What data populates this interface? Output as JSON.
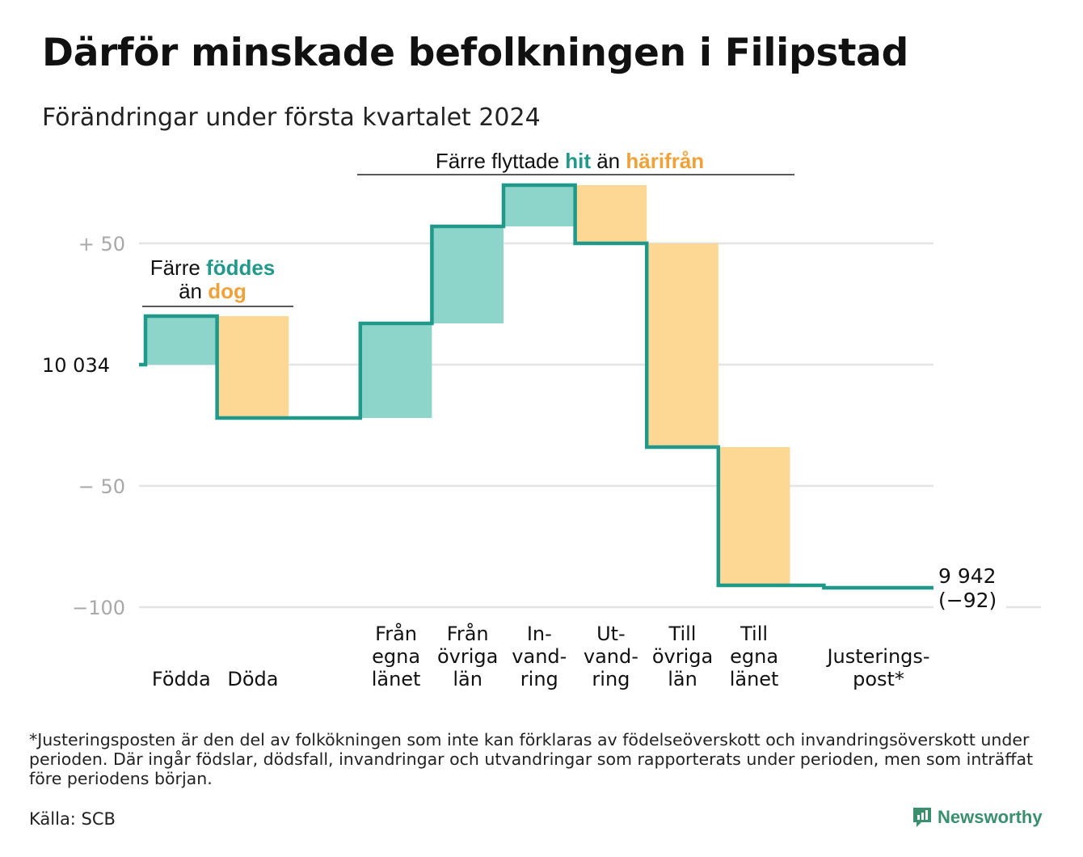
{
  "title": "Därför minskade befolkningen i Filipstad",
  "subtitle": "Förändringar under första kvartalet 2024",
  "footnote": "*Justeringsposten är den del av folkökningen som inte kan förklaras av födelseöverskott och invandringsöverskott under perioden. Där ingår födslar, dödsfall, invandringar och utvandringar som rapporterats under perioden, men som inträffat före periodens början.",
  "source": "Källa: SCB",
  "brand": "Newsworthy",
  "colors": {
    "increase": "#8dd5cb",
    "decrease": "#fcd894",
    "line": "#20998a",
    "teal_text": "#20998a",
    "orange_text": "#f0a23a",
    "grid": "#e4e4e4",
    "tick": "#a8a8a8"
  },
  "chart_data": {
    "type": "waterfall",
    "y_ticks": [
      {
        "value": 50,
        "label": "+  50",
        "gridline": true
      },
      {
        "value": 0,
        "label": "10  034",
        "gridline": true
      },
      {
        "value": -50,
        "label": "−  50",
        "gridline": true
      },
      {
        "value": -100,
        "label": "−100",
        "gridline": true
      }
    ],
    "ylim": [
      -100,
      80
    ],
    "start": {
      "label": "10  034",
      "value": 10034
    },
    "end": {
      "value_label": "9 942",
      "change_label": "(−92)",
      "value": 9942,
      "change": -92
    },
    "steps": [
      {
        "label": "Födda",
        "label_lines": [
          "Födda"
        ],
        "change": 20,
        "from": 0,
        "to": 20,
        "kind": "increase"
      },
      {
        "label": "Döda",
        "label_lines": [
          "Döda"
        ],
        "change": -42,
        "from": 20,
        "to": -22,
        "kind": "decrease"
      },
      {
        "label": "",
        "label_lines": [],
        "change": 0,
        "from": -22,
        "to": -22,
        "kind": "gap"
      },
      {
        "label": "Från egna länet",
        "label_lines": [
          "Från",
          "egna",
          "länet"
        ],
        "change": 39,
        "from": -22,
        "to": 17,
        "kind": "increase"
      },
      {
        "label": "Från övriga län",
        "label_lines": [
          "Från",
          "övriga",
          "län"
        ],
        "change": 40,
        "from": 17,
        "to": 57,
        "kind": "increase"
      },
      {
        "label": "Invandring",
        "label_lines": [
          "In-",
          "vand-",
          "ring"
        ],
        "change": 17,
        "from": 57,
        "to": 74,
        "kind": "increase"
      },
      {
        "label": "Utvandring",
        "label_lines": [
          "Ut-",
          "vand-",
          "ring"
        ],
        "change": -24,
        "from": 74,
        "to": 50,
        "kind": "decrease"
      },
      {
        "label": "Till övriga län",
        "label_lines": [
          "Till",
          "övriga",
          "län"
        ],
        "change": -84,
        "from": 50,
        "to": -34,
        "kind": "decrease"
      },
      {
        "label": "Till egna länet",
        "label_lines": [
          "Till",
          "egna",
          "länet"
        ],
        "change": -57,
        "from": -34,
        "to": -91,
        "kind": "decrease"
      },
      {
        "label": "Justeringspost*",
        "label_lines": [
          "Justerings-",
          "post*"
        ],
        "change": -1,
        "from": -91,
        "to": -92,
        "kind": "adjustment"
      }
    ],
    "annotations": [
      {
        "id": "births",
        "line1": [
          {
            "text": "Färre ",
            "style": "plain"
          },
          {
            "text": "föddes",
            "style": "teal"
          }
        ],
        "line2": [
          {
            "text": "än ",
            "style": "plain"
          },
          {
            "text": "dog",
            "style": "orange"
          }
        ],
        "span_steps": [
          0,
          1
        ]
      },
      {
        "id": "moves",
        "line1": [
          {
            "text": "Färre flyttade ",
            "style": "plain"
          },
          {
            "text": "hit",
            "style": "teal"
          },
          {
            "text": " än ",
            "style": "plain"
          },
          {
            "text": "härifrån",
            "style": "orange"
          }
        ],
        "line2": [],
        "span_steps": [
          3,
          8
        ]
      }
    ]
  }
}
